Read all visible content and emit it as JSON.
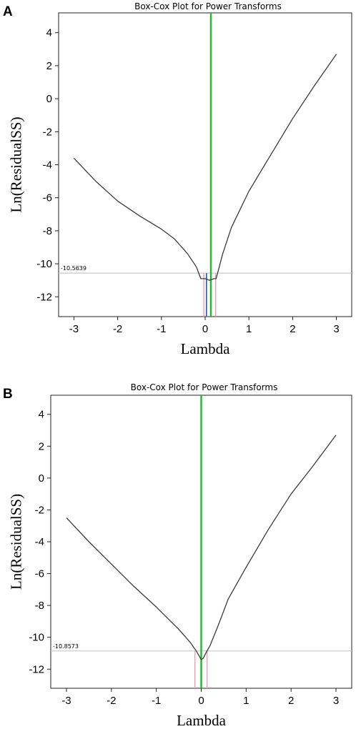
{
  "chart_data": [
    {
      "type": "line",
      "panel_label": "A",
      "title": "Box-Cox Plot for Power Transforms",
      "xlabel": "Lambda",
      "ylabel": "Ln(ResidualSS)",
      "xlim": [
        -3.35,
        3.35
      ],
      "ylim": [
        -13.2,
        5.2
      ],
      "x_ticks": [
        -3,
        -2,
        -1,
        0,
        1,
        2,
        3
      ],
      "y_ticks": [
        4,
        2,
        0,
        -2,
        -4,
        -6,
        -8,
        -10,
        -12
      ],
      "grid": false,
      "series": [
        {
          "x": [
            -3.0,
            -2.5,
            -2.0,
            -1.5,
            -1.0,
            -0.7,
            -0.4,
            -0.2,
            -0.1,
            0.0,
            0.1,
            0.2,
            0.25,
            0.3,
            0.4,
            0.6,
            1.0,
            1.5,
            2.0,
            2.5,
            3.0
          ],
          "y": [
            -3.6,
            -5.0,
            -6.2,
            -7.1,
            -7.9,
            -8.5,
            -9.4,
            -10.2,
            -10.9,
            -10.9,
            -11.0,
            -10.9,
            -10.9,
            -10.4,
            -9.4,
            -7.8,
            -5.6,
            -3.4,
            -1.2,
            0.8,
            2.7
          ],
          "color": "#3a3a3a"
        }
      ],
      "reference_lines": {
        "horizontal": {
          "y": -10.5639,
          "label": "-10.5639",
          "color": "#c8c8c8"
        },
        "best_lambda": {
          "x": 0.13,
          "color": "#1fba2a"
        },
        "estimate": {
          "x": 0.03,
          "color": "#2255cc"
        },
        "ci_lower": {
          "x": -0.03,
          "color": "#ef9eb6"
        },
        "ci_upper": {
          "x": 0.24,
          "color": "#ef9eb6"
        }
      }
    },
    {
      "type": "line",
      "panel_label": "B",
      "title": "Box-Cox Plot for Power Transforms",
      "xlabel": "Lambda",
      "ylabel": "Ln(ResidualSS)",
      "xlim": [
        -3.35,
        3.35
      ],
      "ylim": [
        -13.2,
        5.2
      ],
      "x_ticks": [
        -3,
        -2,
        -1,
        0,
        1,
        2,
        3
      ],
      "y_ticks": [
        4,
        2,
        0,
        -2,
        -4,
        -6,
        -8,
        -10,
        -12
      ],
      "grid": false,
      "series": [
        {
          "x": [
            -3.0,
            -2.5,
            -2.0,
            -1.5,
            -1.0,
            -0.5,
            -0.25,
            -0.1,
            0.0,
            0.05,
            0.1,
            0.2,
            0.4,
            0.6,
            1.0,
            1.5,
            2.0,
            2.5,
            3.0
          ],
          "y": [
            -2.5,
            -4.0,
            -5.4,
            -6.8,
            -8.1,
            -9.5,
            -10.3,
            -10.9,
            -11.4,
            -11.3,
            -11.0,
            -10.5,
            -9.1,
            -7.6,
            -5.6,
            -3.2,
            -1.0,
            0.8,
            2.7
          ],
          "color": "#3a3a3a"
        }
      ],
      "reference_lines": {
        "horizontal": {
          "y": -10.8573,
          "label": "-10.8573",
          "color": "#c8c8c8"
        },
        "best_lambda": {
          "x": 0.0,
          "color": "#1fba2a"
        },
        "estimate": {
          "x": 0.0,
          "color": "#2255cc"
        },
        "ci_lower": {
          "x": -0.14,
          "color": "#ef9eb6"
        },
        "ci_upper": {
          "x": 0.13,
          "color": "#ef9eb6"
        }
      }
    }
  ]
}
